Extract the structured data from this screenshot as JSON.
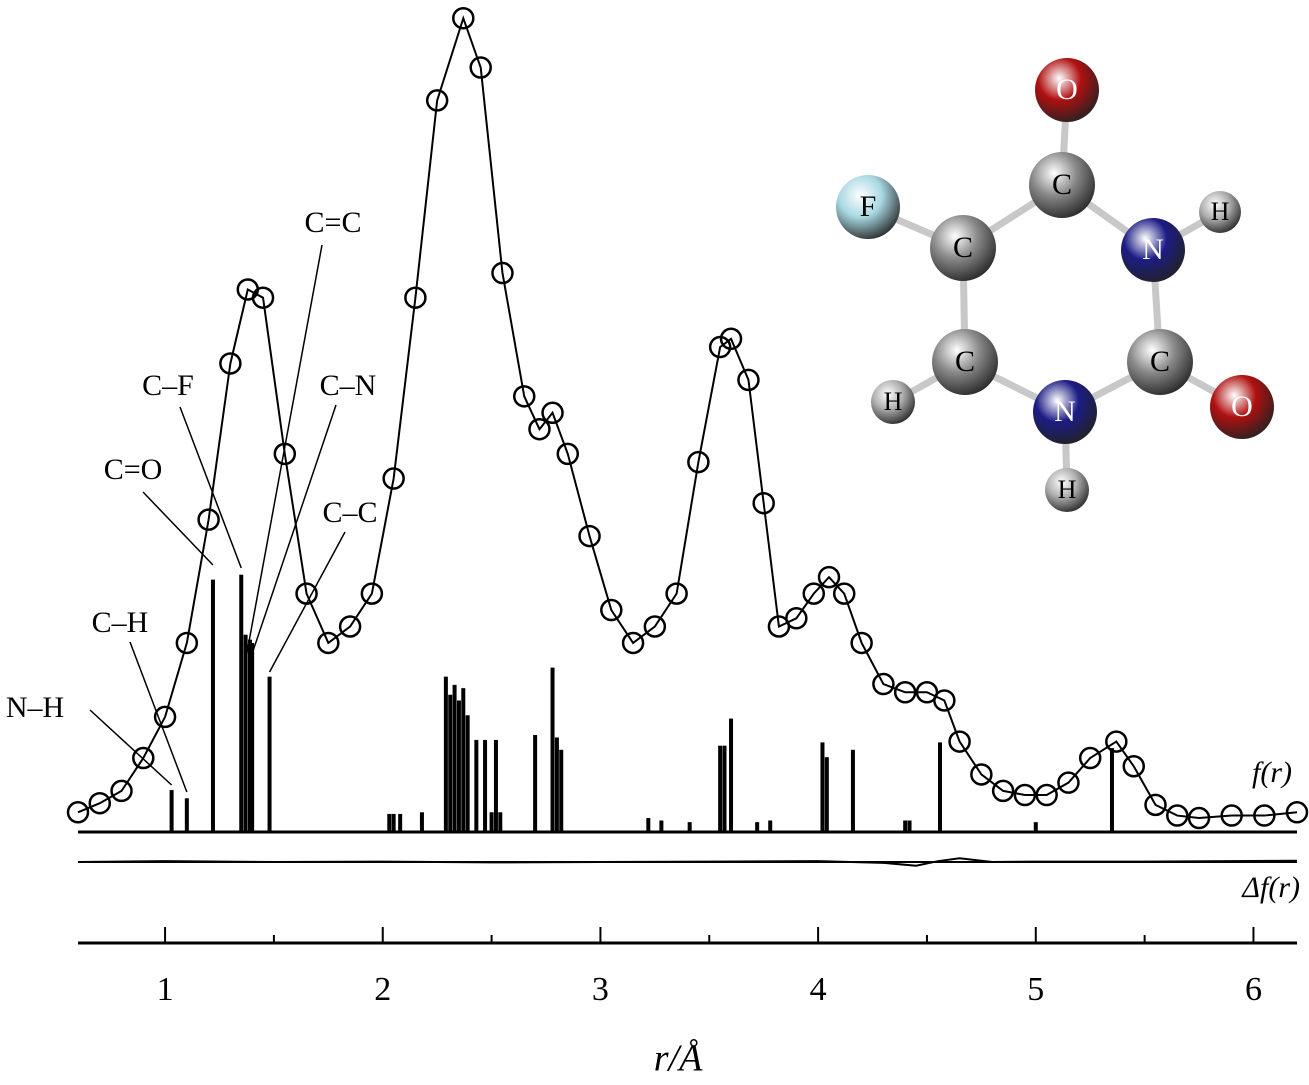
{
  "chart_data": {
    "type": "rdf",
    "x_label": "r/Å",
    "curve_label": "f(r)",
    "difference_label": "Δf(r)",
    "xlim": [
      0.6,
      6.2
    ],
    "xticks": [
      1,
      2,
      3,
      4,
      5,
      6
    ],
    "xminorticks": [
      1.5,
      2.5,
      3.5,
      4.5,
      5.5
    ],
    "ylim": [
      0,
      100
    ],
    "x": [
      0.6,
      0.7,
      0.8,
      0.9,
      1.0,
      1.1,
      1.2,
      1.3,
      1.38,
      1.45,
      1.55,
      1.65,
      1.75,
      1.85,
      1.95,
      2.05,
      2.15,
      2.25,
      2.37,
      2.45,
      2.55,
      2.65,
      2.72,
      2.78,
      2.85,
      2.95,
      3.05,
      3.15,
      3.25,
      3.35,
      3.45,
      3.55,
      3.6,
      3.68,
      3.75,
      3.82,
      3.9,
      3.98,
      4.05,
      4.12,
      4.2,
      4.3,
      4.4,
      4.5,
      4.58,
      4.65,
      4.75,
      4.85,
      4.95,
      5.05,
      5.15,
      5.25,
      5.37,
      5.45,
      5.55,
      5.65,
      5.75,
      5.9,
      6.05,
      6.2
    ],
    "series": [
      {
        "color": "#000000",
        "marker": "circle",
        "values": [
          2.4,
          3.5,
          5,
          9,
          14,
          23,
          38,
          57,
          66,
          65,
          46,
          29,
          23,
          25,
          29,
          43,
          65,
          89,
          99,
          93,
          68,
          53,
          49,
          51,
          46,
          36,
          27,
          23,
          25,
          29,
          45,
          59,
          60,
          55,
          40,
          25,
          26,
          29,
          31,
          29,
          23,
          18,
          17,
          17,
          16,
          11,
          7,
          5,
          4.5,
          4.5,
          6,
          9,
          11,
          8,
          3.3,
          2,
          1.7,
          2,
          2,
          2.4
        ]
      },
      {
        "color": "#000000",
        "marker": "none",
        "values": [
          2.4,
          3.5,
          5,
          9,
          14,
          23,
          38,
          57,
          66,
          65,
          46,
          29,
          23,
          25,
          29,
          43,
          65,
          89,
          99,
          93,
          68,
          53,
          49,
          51,
          46,
          36,
          27,
          23,
          25,
          29,
          45,
          59,
          60,
          55,
          40,
          25,
          26,
          29,
          31,
          29,
          23,
          18,
          17,
          17,
          16,
          11,
          7,
          5,
          4.5,
          4.5,
          6,
          9,
          11,
          8,
          3.3,
          2,
          1.7,
          2,
          2,
          2.4
        ]
      }
    ],
    "sticks": {
      "x": [
        1.03,
        1.1,
        1.22,
        1.35,
        1.37,
        1.39,
        1.4,
        1.48,
        2.03,
        2.05,
        2.08,
        2.18,
        2.29,
        2.31,
        2.33,
        2.35,
        2.37,
        2.39,
        2.43,
        2.47,
        2.5,
        2.52,
        2.54,
        2.7,
        2.78,
        2.8,
        2.82,
        3.22,
        3.28,
        3.41,
        3.55,
        3.57,
        3.6,
        3.72,
        3.78,
        4.02,
        4.04,
        4.16,
        4.4,
        4.42,
        4.56,
        5.0,
        5.35
      ],
      "values": [
        5.1,
        4.1,
        30.7,
        31.3,
        24,
        23.4,
        23,
        18.9,
        2.2,
        2.2,
        2.2,
        2.4,
        18.9,
        16.7,
        17.9,
        16,
        17.5,
        14.2,
        11.2,
        11.2,
        2.4,
        11.2,
        2.4,
        11.8,
        20,
        11.5,
        10,
        1.7,
        1.4,
        1.2,
        10.5,
        10.5,
        13.8,
        1.2,
        1.4,
        10.9,
        9.1,
        10,
        1.4,
        1.4,
        10.9,
        1.2,
        10.2
      ]
    },
    "difference": {
      "x": [
        0.6,
        1.0,
        1.5,
        2.0,
        2.5,
        3.0,
        3.5,
        4.0,
        4.3,
        4.45,
        4.55,
        4.65,
        4.8,
        5.0,
        5.5,
        6.2
      ],
      "values": [
        0,
        0.1,
        0,
        0.05,
        -0.05,
        0,
        0.05,
        0.1,
        -0.1,
        -0.45,
        0.1,
        0.45,
        0,
        0.05,
        0.05,
        0.15
      ]
    },
    "annotations": [
      {
        "text": "N–H",
        "x": 1.03
      },
      {
        "text": "C–H",
        "x": 1.1
      },
      {
        "text": "C=O",
        "x": 1.22
      },
      {
        "text": "C–F",
        "x": 1.35
      },
      {
        "text": "C=C",
        "x": 1.37
      },
      {
        "text": "C–N",
        "x": 1.39
      },
      {
        "text": "C–C",
        "x": 1.48
      }
    ],
    "molecule": {
      "atoms": [
        {
          "label": "O",
          "color": "#b01010"
        },
        {
          "label": "C",
          "color": "#8a8a8a"
        },
        {
          "label": "F",
          "color": "#a8d8e2"
        },
        {
          "label": "C",
          "color": "#8a8a8a"
        },
        {
          "label": "N",
          "color": "#1c1c85"
        },
        {
          "label": "H",
          "color": "#b0b0b0"
        },
        {
          "label": "C",
          "color": "#8a8a8a"
        },
        {
          "label": "C",
          "color": "#8a8a8a"
        },
        {
          "label": "H",
          "color": "#b0b0b0"
        },
        {
          "label": "N",
          "color": "#1c1c85"
        },
        {
          "label": "O",
          "color": "#b01010"
        },
        {
          "label": "H",
          "color": "#b0b0b0"
        }
      ]
    }
  }
}
